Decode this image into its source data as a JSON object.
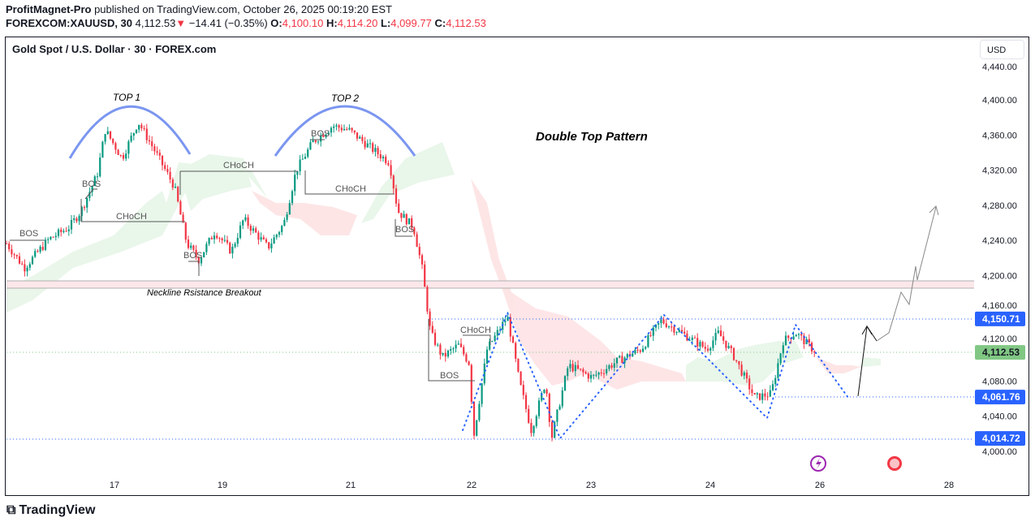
{
  "header": {
    "author": "ProfitMagnet-Pro",
    "published": "published on TradingView.com, October 26, 2025 00:19:20 EST",
    "symbol": "FOREXCOM:XAUUSD, 30",
    "last": "4,112.53",
    "change": "−14.41 (−0.35%)",
    "o_label": "O:",
    "o": "4,100.10",
    "h_label": "H:",
    "h": "4,114.20",
    "l_label": "L:",
    "l": "4,099.77",
    "c_label": "C:",
    "c": "4,112.53"
  },
  "chart_title": "Gold Spot / U.S. Dollar · 30 · FOREX.com",
  "currency": "USD",
  "footer_logo": "TradingView",
  "annotations": {
    "top1": "TOP 1",
    "top2": "TOP 2",
    "pattern": "Double Top Pattern",
    "neckline": "Neckline Rsistance Breakout",
    "bos": "BOS",
    "choch": "CHoCH"
  },
  "colors": {
    "up": "#089981",
    "down": "#f23645",
    "level": "#2962ff",
    "current": "#81c784",
    "arc": "#7b96f0"
  },
  "chart_data": {
    "type": "candlestick",
    "title": "Gold Spot / U.S. Dollar · 30 · FOREX.com",
    "ylim": [
      3990,
      4450
    ],
    "y_ticks": [
      "4,440.00",
      "4,400.00",
      "4,360.00",
      "4,320.00",
      "4,280.00",
      "4,240.00",
      "4,200.00",
      "4,160.00",
      "4,120.00",
      "4,080.00",
      "4,040.00",
      "4,000.00"
    ],
    "x_ticks": [
      "17",
      "19",
      "21",
      "22",
      "23",
      "24",
      "26",
      "28"
    ],
    "price_labels": [
      {
        "value": "4,150.71",
        "color": "#2962ff"
      },
      {
        "value": "4,112.53",
        "color": "#81c784"
      },
      {
        "value": "4,061.76",
        "color": "#2962ff"
      },
      {
        "value": "4,014.72",
        "color": "#2962ff"
      }
    ],
    "price_path_oct_day": [
      [
        15.0,
        4236.5
      ],
      [
        15.33,
        4208.8
      ],
      [
        15.78,
        4241.1
      ],
      [
        16.16,
        4255
      ],
      [
        16.38,
        4273.4
      ],
      [
        16.68,
        4315
      ],
      [
        16.83,
        4365.8
      ],
      [
        17.14,
        4333.5
      ],
      [
        17.44,
        4375
      ],
      [
        17.74,
        4342.7
      ],
      [
        18.11,
        4301.2
      ],
      [
        18.34,
        4236.5
      ],
      [
        18.56,
        4218
      ],
      [
        18.86,
        4250.3
      ],
      [
        19.14,
        4227.3
      ],
      [
        19.33,
        4264.2
      ],
      [
        19.71,
        4231.9
      ],
      [
        19.96,
        4259.6
      ],
      [
        20.15,
        4319.6
      ],
      [
        20.41,
        4352
      ],
      [
        20.72,
        4370.4
      ],
      [
        20.97,
        4365.8
      ],
      [
        21.19,
        4342.7
      ],
      [
        21.32,
        4328.9
      ],
      [
        21.39,
        4273.4
      ],
      [
        21.52,
        4255
      ],
      [
        21.59,
        4208.8
      ],
      [
        21.66,
        4134.9
      ],
      [
        21.76,
        4107.2
      ],
      [
        21.89,
        4121
      ],
      [
        21.99,
        4097.9
      ],
      [
        22.01,
        4010.2
      ],
      [
        22.13,
        4116.4
      ],
      [
        22.3,
        4153.3
      ],
      [
        22.4,
        4079.4
      ],
      [
        22.5,
        4024
      ],
      [
        22.62,
        4079.4
      ],
      [
        22.67,
        4014.8
      ],
      [
        22.81,
        4097.9
      ],
      [
        23.01,
        4084.1
      ],
      [
        23.22,
        4102.5
      ],
      [
        23.42,
        4116.4
      ],
      [
        23.59,
        4148.7
      ],
      [
        23.76,
        4134.9
      ],
      [
        23.97,
        4116.4
      ],
      [
        24.15,
        4134.9
      ],
      [
        24.44,
        4107.2
      ],
      [
        24.81,
        4061
      ],
      [
        25.11,
        4065.6
      ],
      [
        25.33,
        4125.6
      ],
      [
        25.56,
        4134.9
      ],
      [
        25.93,
        4112.53
      ]
    ]
  }
}
